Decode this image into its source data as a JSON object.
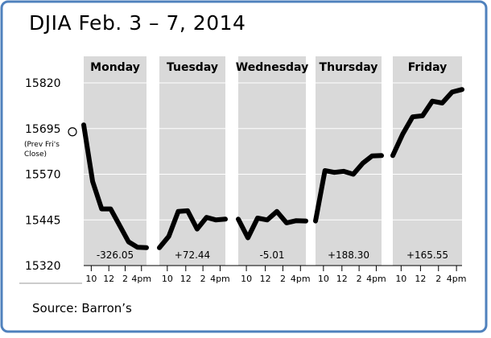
{
  "title": "DJIA    Feb. 3 – 7, 2014",
  "source": "Source:  Barron’s",
  "prev_close_label": [
    "(Prev Fri's",
    "Close)"
  ],
  "colors": {
    "frame": "#4f81bd",
    "panel": "#d9d9d9",
    "line": "#000000",
    "grid": "#ffffff"
  },
  "chart_data": {
    "type": "line",
    "y_ticks": [
      15320,
      15445,
      15570,
      15695,
      15820
    ],
    "ylim": [
      15320,
      15850
    ],
    "prev_close": 15695,
    "x_tick_labels": [
      "10",
      "12",
      "2",
      "4pm"
    ],
    "grid": true,
    "days": [
      {
        "name": "Monday",
        "change": "-326.05",
        "points": [
          [
            0,
            15705
          ],
          [
            1,
            15550
          ],
          [
            2,
            15475
          ],
          [
            3,
            15475
          ],
          [
            4,
            15430
          ],
          [
            5,
            15385
          ],
          [
            6,
            15370
          ],
          [
            7,
            15369
          ]
        ]
      },
      {
        "name": "Tuesday",
        "change": "+72.44",
        "points": [
          [
            0,
            15369
          ],
          [
            1,
            15400
          ],
          [
            2,
            15468
          ],
          [
            3,
            15470
          ],
          [
            4,
            15420
          ],
          [
            5,
            15452
          ],
          [
            6,
            15445
          ],
          [
            7,
            15447
          ]
        ]
      },
      {
        "name": "Wednesday",
        "change": "-5.01",
        "points": [
          [
            0,
            15447
          ],
          [
            1,
            15396
          ],
          [
            2,
            15450
          ],
          [
            3,
            15445
          ],
          [
            4,
            15468
          ],
          [
            5,
            15437
          ],
          [
            6,
            15443
          ],
          [
            7,
            15442
          ]
        ]
      },
      {
        "name": "Thursday",
        "change": "+188.30",
        "points": [
          [
            0,
            15442
          ],
          [
            1,
            15580
          ],
          [
            2,
            15575
          ],
          [
            3,
            15578
          ],
          [
            4,
            15570
          ],
          [
            5,
            15600
          ],
          [
            6,
            15620
          ],
          [
            7,
            15621
          ]
        ]
      },
      {
        "name": "Friday",
        "change": "+165.55",
        "points": [
          [
            0,
            15621
          ],
          [
            1,
            15680
          ],
          [
            2,
            15727
          ],
          [
            3,
            15730
          ],
          [
            4,
            15770
          ],
          [
            5,
            15765
          ],
          [
            6,
            15795
          ],
          [
            7,
            15802
          ]
        ]
      }
    ]
  }
}
